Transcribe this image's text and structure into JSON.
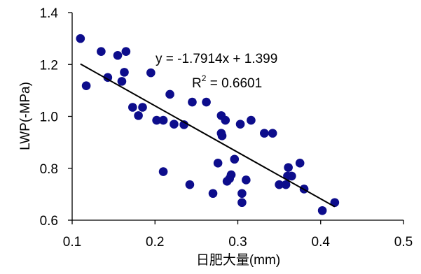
{
  "chart_data": {
    "type": "scatter",
    "title": "",
    "xlabel": "日肥大量(mm)",
    "ylabel": "LWP(-MPa)",
    "xlim": [
      0.1,
      0.5
    ],
    "ylim": [
      0.6,
      1.4
    ],
    "xticks": [
      "0.1",
      "0.2",
      "0.3",
      "0.4",
      "0.5"
    ],
    "yticks": [
      "0.6",
      "0.8",
      "1.0",
      "1.2",
      "1.4"
    ],
    "grid": false,
    "legend": "none",
    "colors": {
      "marker": "#0d0d8c",
      "line": "#000000",
      "axis": "#000000"
    },
    "points": [
      {
        "x": 0.11,
        "y": 1.3
      },
      {
        "x": 0.117,
        "y": 1.118
      },
      {
        "x": 0.135,
        "y": 1.25
      },
      {
        "x": 0.143,
        "y": 1.15
      },
      {
        "x": 0.155,
        "y": 1.235
      },
      {
        "x": 0.16,
        "y": 1.135
      },
      {
        "x": 0.163,
        "y": 1.17
      },
      {
        "x": 0.165,
        "y": 1.25
      },
      {
        "x": 0.173,
        "y": 1.035
      },
      {
        "x": 0.18,
        "y": 1.003
      },
      {
        "x": 0.185,
        "y": 1.035
      },
      {
        "x": 0.195,
        "y": 1.168
      },
      {
        "x": 0.202,
        "y": 0.985
      },
      {
        "x": 0.21,
        "y": 0.985
      },
      {
        "x": 0.21,
        "y": 0.787
      },
      {
        "x": 0.218,
        "y": 1.085
      },
      {
        "x": 0.223,
        "y": 0.97
      },
      {
        "x": 0.235,
        "y": 0.968
      },
      {
        "x": 0.242,
        "y": 0.737
      },
      {
        "x": 0.245,
        "y": 1.055
      },
      {
        "x": 0.262,
        "y": 1.055
      },
      {
        "x": 0.27,
        "y": 0.703
      },
      {
        "x": 0.276,
        "y": 0.82
      },
      {
        "x": 0.28,
        "y": 1.003
      },
      {
        "x": 0.28,
        "y": 0.935
      },
      {
        "x": 0.281,
        "y": 0.925
      },
      {
        "x": 0.285,
        "y": 0.985
      },
      {
        "x": 0.287,
        "y": 0.75
      },
      {
        "x": 0.29,
        "y": 0.76
      },
      {
        "x": 0.292,
        "y": 0.775
      },
      {
        "x": 0.296,
        "y": 0.835
      },
      {
        "x": 0.303,
        "y": 0.97
      },
      {
        "x": 0.305,
        "y": 0.703
      },
      {
        "x": 0.305,
        "y": 0.668
      },
      {
        "x": 0.31,
        "y": 0.755
      },
      {
        "x": 0.316,
        "y": 0.985
      },
      {
        "x": 0.332,
        "y": 0.935
      },
      {
        "x": 0.342,
        "y": 0.935
      },
      {
        "x": 0.35,
        "y": 0.737
      },
      {
        "x": 0.358,
        "y": 0.737
      },
      {
        "x": 0.36,
        "y": 0.77
      },
      {
        "x": 0.361,
        "y": 0.803
      },
      {
        "x": 0.365,
        "y": 0.77
      },
      {
        "x": 0.375,
        "y": 0.82
      },
      {
        "x": 0.38,
        "y": 0.72
      },
      {
        "x": 0.402,
        "y": 0.637
      },
      {
        "x": 0.417,
        "y": 0.668
      }
    ],
    "trendline": {
      "slope": -1.7914,
      "intercept": 1.399,
      "x_range": [
        0.11,
        0.417
      ],
      "equation": "y = -1.7914x + 1.399",
      "r2_label": "R",
      "r2_sup": "2",
      "r2_value": " = 0.6601"
    }
  }
}
